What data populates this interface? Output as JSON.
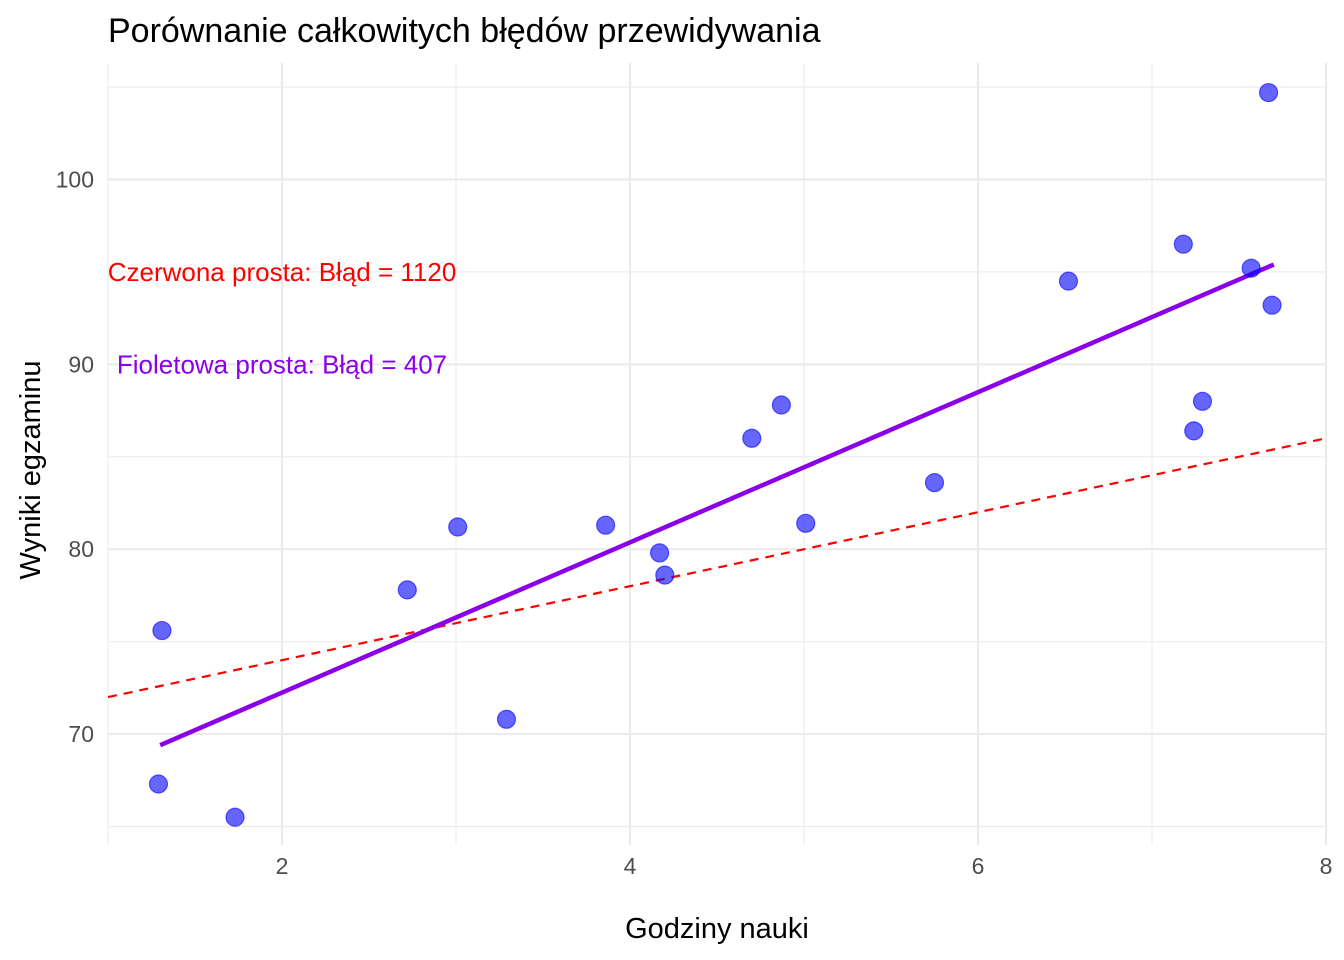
{
  "chart_data": {
    "type": "scatter",
    "title": "Porównanie całkowitych błędów przewidywania",
    "xlabel": "Godziny nauki",
    "ylabel": "Wyniki egzaminu",
    "xlim": [
      1.0,
      8.0
    ],
    "ylim": [
      64.0,
      106.3
    ],
    "x_ticks": [
      2,
      4,
      6,
      8
    ],
    "y_ticks": [
      70,
      80,
      90,
      100
    ],
    "grid": true,
    "legend": "none",
    "points": {
      "color": "#0000ff",
      "x": [
        1.29,
        1.31,
        1.73,
        2.72,
        3.01,
        3.29,
        3.86,
        4.17,
        4.2,
        4.7,
        4.87,
        5.01,
        5.75,
        6.52,
        7.18,
        7.24,
        7.29,
        7.57,
        7.67,
        7.69
      ],
      "y": [
        67.3,
        75.6,
        65.5,
        77.8,
        81.2,
        70.8,
        81.3,
        79.8,
        78.6,
        86.0,
        87.8,
        81.4,
        83.6,
        94.5,
        96.5,
        86.4,
        88.0,
        95.2,
        104.7,
        93.2
      ]
    },
    "lines": [
      {
        "name": "red-dashed-line",
        "color": "#ff0000",
        "style": "dashed",
        "x": [
          1.0,
          8.0
        ],
        "y": [
          72.0,
          86.0
        ]
      },
      {
        "name": "purple-line",
        "color": "#8b00e8",
        "style": "solid",
        "x": [
          1.3,
          7.7
        ],
        "y": [
          69.4,
          95.4
        ]
      }
    ],
    "annotations": [
      {
        "text": "Czerwona prosta: Błąd = 1120",
        "color": "#ff0000",
        "x": 2.0,
        "y": 95.0
      },
      {
        "text": "Fioletowa prosta: Błąd = 407",
        "color": "#8b00e8",
        "x": 2.0,
        "y": 90.0
      }
    ]
  }
}
